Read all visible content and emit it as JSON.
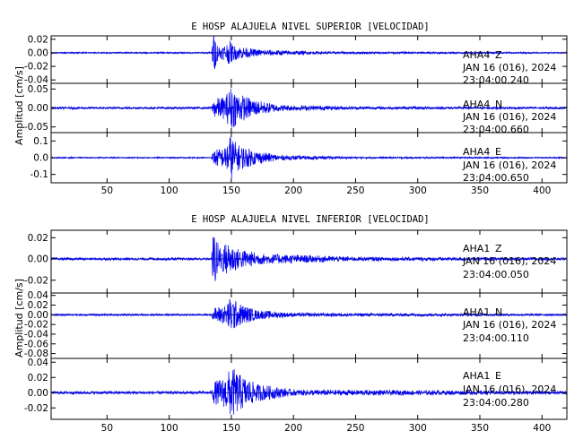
{
  "chart_data": [
    {
      "type": "line",
      "title": "E HOSP ALAJUELA NIVEL SUPERIOR [VELOCIDAD]",
      "ylabel": "Amplitud [cm/s]",
      "xlim": [
        5,
        420
      ],
      "x_ticks": [
        "50",
        "100",
        "150",
        "200",
        "250",
        "300",
        "350",
        "400"
      ],
      "series": [
        {
          "station": "AHA4",
          "channel": "Z",
          "date": "JAN 16 (016), 2024",
          "time": "23:04:00.240",
          "ylim": [
            -0.045,
            0.025
          ],
          "y_ticks": [
            "0.02",
            "0.00",
            "-0.02",
            "-0.04"
          ],
          "envelope": [
            {
              "x": 5,
              "amp": 0.001
            },
            {
              "x": 134,
              "amp": 0.0012
            },
            {
              "x": 135,
              "amp": 0.022
            },
            {
              "x": 136,
              "amp": 0.035
            },
            {
              "x": 138,
              "amp": 0.014
            },
            {
              "x": 142,
              "amp": 0.009
            },
            {
              "x": 149,
              "amp": 0.018
            },
            {
              "x": 152,
              "amp": 0.011
            },
            {
              "x": 170,
              "amp": 0.005
            },
            {
              "x": 220,
              "amp": 0.002
            },
            {
              "x": 420,
              "amp": 0.001
            }
          ]
        },
        {
          "station": "AHA4",
          "channel": "N",
          "date": "JAN 16 (016), 2024",
          "time": "23:04:00.660",
          "ylim": [
            -0.065,
            0.065
          ],
          "y_ticks": [
            "0.05",
            "0.00",
            "-0.05"
          ],
          "envelope": [
            {
              "x": 5,
              "amp": 0.003
            },
            {
              "x": 134,
              "amp": 0.003
            },
            {
              "x": 136,
              "amp": 0.025
            },
            {
              "x": 145,
              "amp": 0.03
            },
            {
              "x": 150,
              "amp": 0.06
            },
            {
              "x": 155,
              "amp": 0.04
            },
            {
              "x": 170,
              "amp": 0.02
            },
            {
              "x": 190,
              "amp": 0.008
            },
            {
              "x": 250,
              "amp": 0.004
            },
            {
              "x": 420,
              "amp": 0.003
            }
          ]
        },
        {
          "station": "AHA4",
          "channel": "E",
          "date": "JAN 16 (016), 2024",
          "time": "23:04:00.650",
          "ylim": [
            -0.15,
            0.15
          ],
          "y_ticks": [
            "0.1",
            "0.0",
            "-0.1"
          ],
          "envelope": [
            {
              "x": 5,
              "amp": 0.004
            },
            {
              "x": 134,
              "amp": 0.004
            },
            {
              "x": 136,
              "amp": 0.05
            },
            {
              "x": 145,
              "amp": 0.06
            },
            {
              "x": 149,
              "amp": 0.14
            },
            {
              "x": 155,
              "amp": 0.08
            },
            {
              "x": 170,
              "amp": 0.04
            },
            {
              "x": 190,
              "amp": 0.015
            },
            {
              "x": 250,
              "amp": 0.006
            },
            {
              "x": 420,
              "amp": 0.004
            }
          ]
        }
      ]
    },
    {
      "type": "line",
      "title": "E HOSP ALAJUELA NIVEL INFERIOR [VELOCIDAD]",
      "ylabel": "Amplitud [cm/s]",
      "xlim": [
        5,
        420
      ],
      "x_ticks": [
        "50",
        "100",
        "150",
        "200",
        "250",
        "300",
        "350",
        "400"
      ],
      "series": [
        {
          "station": "AHA1",
          "channel": "Z",
          "date": "JAN 16 (016), 2024",
          "time": "23:04:00.050",
          "ylim": [
            -0.032,
            0.027
          ],
          "y_ticks": [
            "0.02",
            "0.00",
            "-0.02"
          ],
          "envelope": [
            {
              "x": 5,
              "amp": 0.0012
            },
            {
              "x": 134,
              "amp": 0.0012
            },
            {
              "x": 135,
              "amp": 0.02
            },
            {
              "x": 136,
              "amp": 0.03
            },
            {
              "x": 140,
              "amp": 0.012
            },
            {
              "x": 148,
              "amp": 0.016
            },
            {
              "x": 155,
              "amp": 0.01
            },
            {
              "x": 175,
              "amp": 0.005
            },
            {
              "x": 250,
              "amp": 0.002
            },
            {
              "x": 420,
              "amp": 0.0012
            }
          ]
        },
        {
          "station": "AHA1",
          "channel": "N",
          "date": "JAN 16 (016), 2024",
          "time": "23:04:00.110",
          "ylim": [
            -0.09,
            0.045
          ],
          "y_ticks": [
            "0.04",
            "0.02",
            "0.00",
            "-0.02",
            "-0.04",
            "-0.06",
            "-0.08"
          ],
          "envelope": [
            {
              "x": 5,
              "amp": 0.002
            },
            {
              "x": 134,
              "amp": 0.002
            },
            {
              "x": 136,
              "amp": 0.015
            },
            {
              "x": 145,
              "amp": 0.02
            },
            {
              "x": 150,
              "amp": 0.04
            },
            {
              "x": 155,
              "amp": 0.025
            },
            {
              "x": 170,
              "amp": 0.01
            },
            {
              "x": 200,
              "amp": 0.004
            },
            {
              "x": 420,
              "amp": 0.002
            }
          ]
        },
        {
          "station": "AHA1",
          "channel": "E",
          "date": "JAN 16 (016), 2024",
          "time": "23:04:00.280",
          "ylim": [
            -0.035,
            0.045
          ],
          "y_ticks": [
            "0.04",
            "0.02",
            "0.00",
            "-0.02"
          ],
          "envelope": [
            {
              "x": 5,
              "amp": 0.002
            },
            {
              "x": 134,
              "amp": 0.002
            },
            {
              "x": 136,
              "amp": 0.015
            },
            {
              "x": 145,
              "amp": 0.02
            },
            {
              "x": 150,
              "amp": 0.035
            },
            {
              "x": 156,
              "amp": 0.025
            },
            {
              "x": 170,
              "amp": 0.012
            },
            {
              "x": 200,
              "amp": 0.004
            },
            {
              "x": 420,
              "amp": 0.002
            }
          ]
        }
      ]
    }
  ]
}
